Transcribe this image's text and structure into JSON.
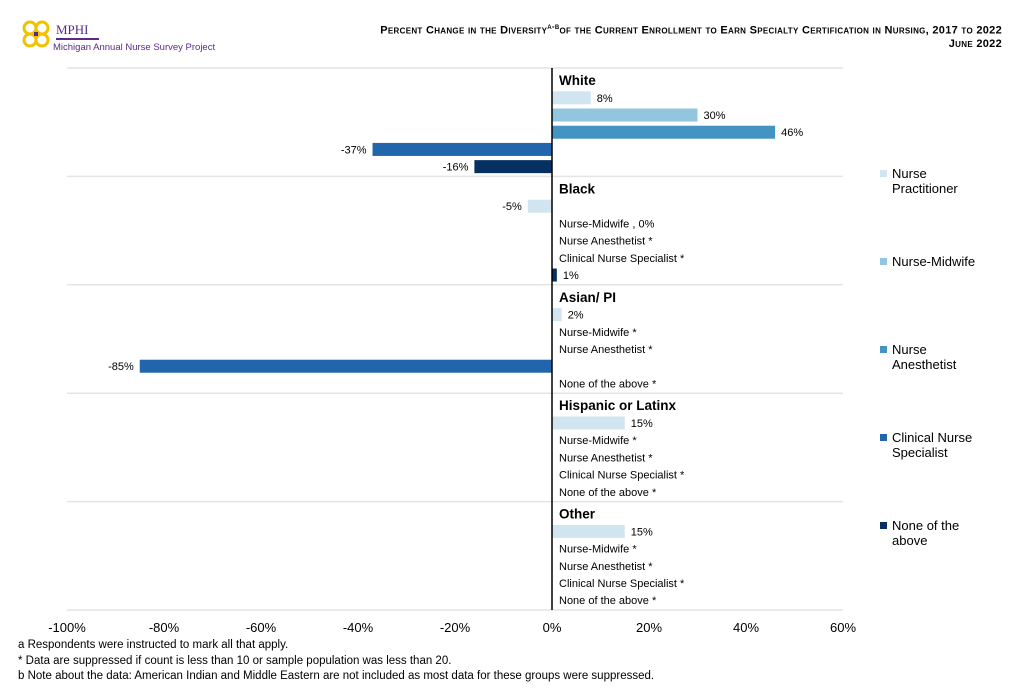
{
  "logo": {
    "name": "MPHI",
    "subtitle": "Michigan Annual Nurse Survey Project"
  },
  "header": {
    "title_part1": "Percent Change in the Diversity",
    "title_sup": "a-b",
    "title_part2": "of the Current Enrollment to Earn Specialty Certification in Nursing, 2017 to 2022",
    "date": "June 2022"
  },
  "chart_data": {
    "type": "bar",
    "orientation": "horizontal",
    "xlim": [
      -100,
      60
    ],
    "x_ticks": [
      "-100%",
      "-80%",
      "-60%",
      "-40%",
      "-20%",
      "0%",
      "20%",
      "40%",
      "60%"
    ],
    "grid": "horizontal group separators",
    "legend_placement": "right",
    "series_names": [
      "Nurse Practitioner",
      "Nurse-Midwife",
      "Nurse Anesthetist",
      "Clinical Nurse Specialist",
      "None of the above"
    ],
    "colors": [
      "#d1e5f0",
      "#92c5de",
      "#4393c3",
      "#2166ac",
      "#053061"
    ],
    "groups": [
      {
        "name": "White",
        "values": [
          8,
          30,
          46,
          -37,
          -16
        ],
        "labels": [
          "8%",
          "30%",
          "46%",
          "-37%",
          "-16%"
        ]
      },
      {
        "name": "Black",
        "values": [
          -5,
          0,
          null,
          null,
          1
        ],
        "labels": [
          "-5%",
          "Nurse-Midwife , 0%",
          "Nurse Anesthetist *",
          "Clinical Nurse Specialist *",
          "1%"
        ]
      },
      {
        "name": "Asian/ PI",
        "values": [
          2,
          null,
          null,
          -85,
          null
        ],
        "labels": [
          "2%",
          "Nurse-Midwife *",
          "Nurse Anesthetist *",
          "-85%",
          "None of the above *"
        ]
      },
      {
        "name": "Hispanic or Latinx",
        "values": [
          15,
          null,
          null,
          null,
          null
        ],
        "labels": [
          "15%",
          "Nurse-Midwife *",
          "Nurse Anesthetist *",
          "Clinical Nurse Specialist *",
          "None of the above *"
        ]
      },
      {
        "name": "Other",
        "values": [
          15,
          null,
          null,
          null,
          null
        ],
        "labels": [
          "15%",
          "Nurse-Midwife *",
          "Nurse Anesthetist *",
          "Clinical Nurse Specialist *",
          "None of the above *"
        ]
      }
    ]
  },
  "legend": [
    "Nurse Practitioner",
    "Nurse-Midwife",
    "Nurse Anesthetist",
    "Clinical Nurse Specialist",
    "None of the above"
  ],
  "footnotes": [
    "a Respondents were instructed to mark all that apply.",
    "* Data are suppressed if count is less than 10 or sample population was less than 20.",
    "b Note about the data: American Indian and Middle Eastern are not included as most data for these groups were suppressed."
  ]
}
